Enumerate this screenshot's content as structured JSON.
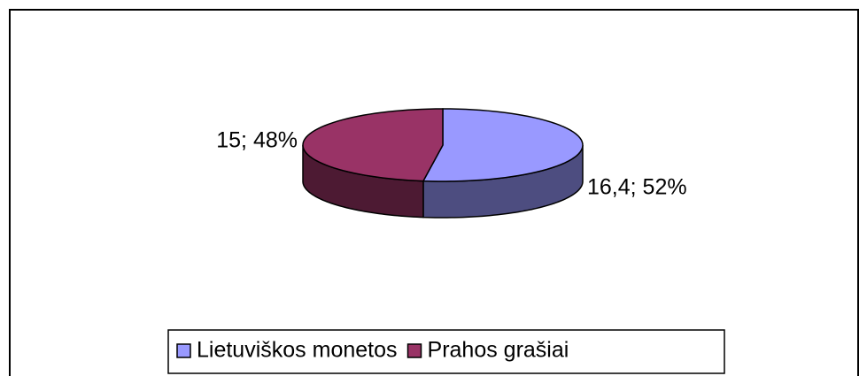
{
  "chart_data": {
    "type": "pie",
    "categories": [
      "Lietuviškos monetos",
      "Prahos grašiai"
    ],
    "values": [
      16.4,
      15
    ],
    "value_labels": [
      "16,4; 52%",
      "15; 48%"
    ],
    "colors": [
      "#9999ff",
      "#993366"
    ],
    "side_colors": [
      "#4d4d80",
      "#4d1a33"
    ],
    "legend": "bottom"
  }
}
